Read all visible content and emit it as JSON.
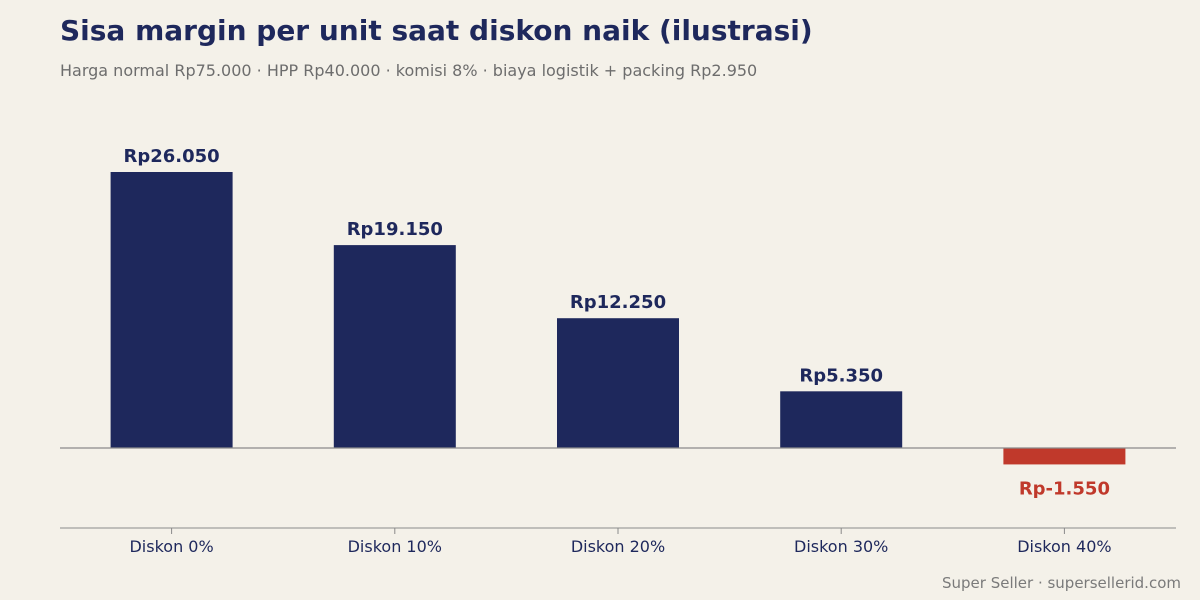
{
  "header": {
    "title": "Sisa margin per unit saat diskon naik (ilustrasi)",
    "subtitle": "Harga normal Rp75.000 · HPP Rp40.000 · komisi 8% · biaya logistik + packing Rp2.950"
  },
  "footer": {
    "credit": "Super Seller · supersellerid.com"
  },
  "colors": {
    "positive": "#1e285c",
    "negative": "#c0392b",
    "background": "#f4f1e9",
    "baseline": "#8a8a8a"
  },
  "chart_data": {
    "type": "bar",
    "title": "Sisa margin per unit saat diskon naik (ilustrasi)",
    "subtitle": "Harga normal Rp75.000 · HPP Rp40.000 · komisi 8% · biaya logistik + packing Rp2.950",
    "categories": [
      "Diskon 0%",
      "Diskon 10%",
      "Diskon 20%",
      "Diskon 30%",
      "Diskon 40%"
    ],
    "values": [
      26050,
      19150,
      12250,
      5350,
      -1550
    ],
    "data_labels": [
      "Rp26.050",
      "Rp19.150",
      "Rp12.250",
      "Rp5.350",
      "Rp-1.550"
    ],
    "xlabel": "",
    "ylabel": "",
    "grid": false,
    "legend": "none"
  }
}
